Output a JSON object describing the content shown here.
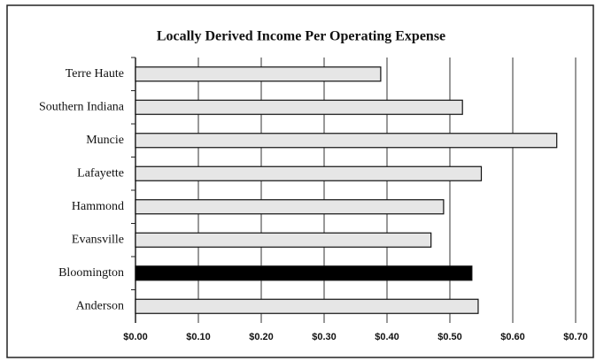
{
  "chart_data": {
    "type": "hbar",
    "title": "Locally Derived Income Per Operating Expense",
    "categories": [
      "Terre Haute",
      "Southern Indiana",
      "Muncie",
      "Lafayette",
      "Hammond",
      "Evansville",
      "Bloomington",
      "Anderson"
    ],
    "values": [
      0.39,
      0.52,
      0.67,
      0.55,
      0.49,
      0.47,
      0.535,
      0.545
    ],
    "colors": [
      "#e6e6e6",
      "#e6e6e6",
      "#e6e6e6",
      "#e6e6e6",
      "#e6e6e6",
      "#e6e6e6",
      "#000000",
      "#e6e6e6"
    ],
    "xlim": [
      0,
      0.7
    ],
    "xticks": [
      {
        "value": 0,
        "label": "$0.00"
      },
      {
        "value": 0.1,
        "label": "$0.10"
      },
      {
        "value": 0.2,
        "label": "$0.20"
      },
      {
        "value": 0.3,
        "label": "$0.30"
      },
      {
        "value": 0.4,
        "label": "$0.40"
      },
      {
        "value": 0.5,
        "label": "$0.50"
      },
      {
        "value": 0.6,
        "label": "$0.60"
      },
      {
        "value": 0.7,
        "label": "$0.70"
      }
    ],
    "grid": true
  }
}
